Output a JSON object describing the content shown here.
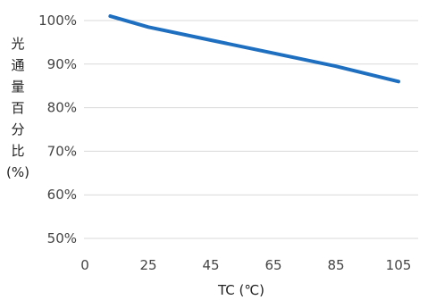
{
  "chart_data": {
    "type": "line",
    "title": "",
    "xlabel": "TC (℃)",
    "ylabel_chars": [
      "光",
      "通",
      "量",
      "百",
      "分",
      "比"
    ],
    "ylabel_unit": "(%)",
    "x_ticks": [
      "0",
      "25",
      "45",
      "65",
      "85",
      "105"
    ],
    "y_ticks": [
      "100%",
      "90%",
      "80%",
      "70%",
      "60%",
      "50%"
    ],
    "xlim": [
      0,
      105
    ],
    "ylim": [
      50,
      100
    ],
    "grid": "horizontal",
    "series": [
      {
        "color": "#1f6fc0",
        "x": [
          10,
          25,
          45,
          65,
          85,
          105
        ],
        "y": [
          101,
          98.5,
          95.5,
          92.5,
          89.5,
          86
        ]
      }
    ]
  }
}
